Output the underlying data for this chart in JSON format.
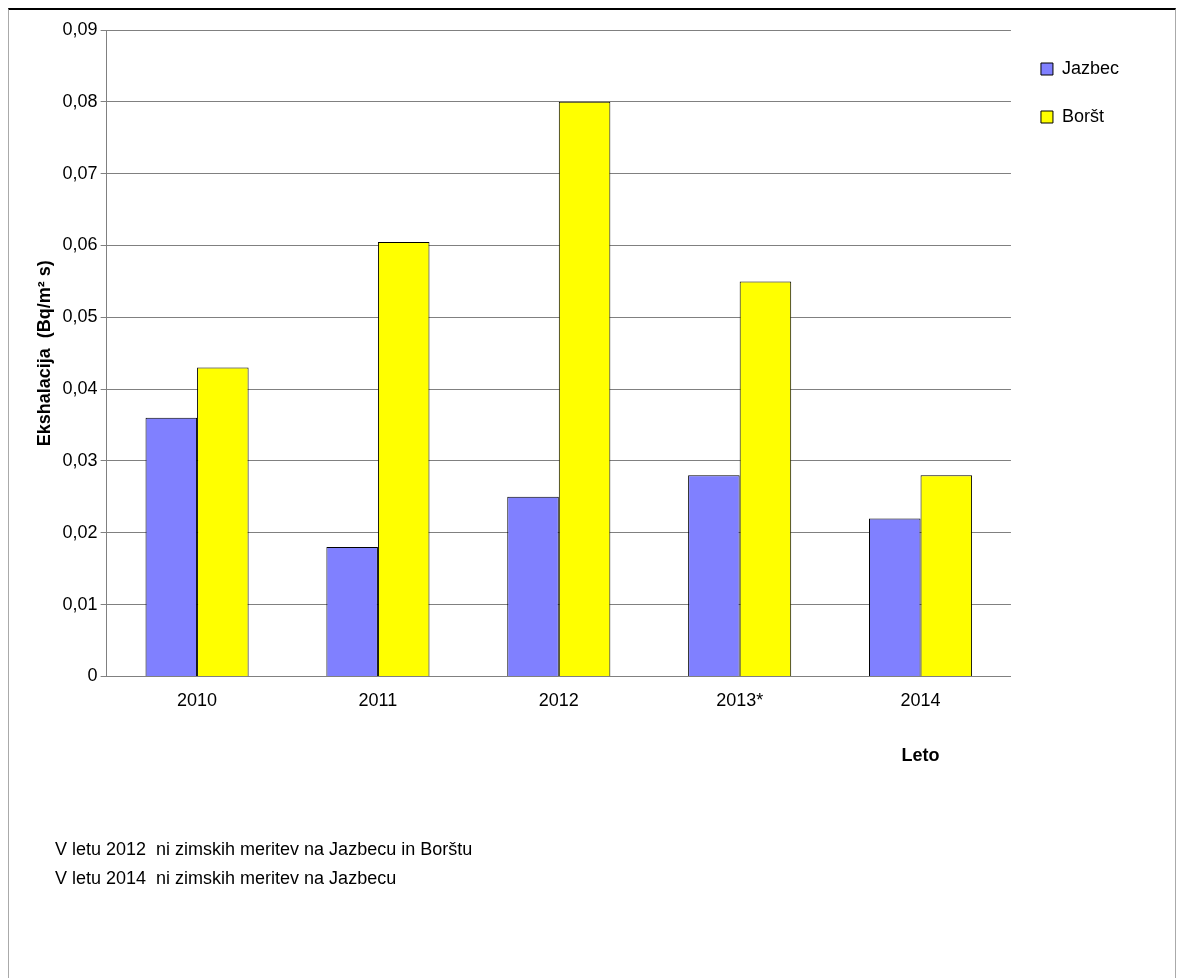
{
  "chart_data": {
    "type": "bar",
    "xlabel": "Leto",
    "ylabel": "Ekshalacija  (Bq/m² s)",
    "categories": [
      "2010",
      "2011",
      "2012",
      "2013*",
      "2014"
    ],
    "series": [
      {
        "name": "Jazbec",
        "color": "#8080ff",
        "values": [
          0.036,
          0.018,
          0.025,
          0.028,
          0.022
        ]
      },
      {
        "name": "Boršt",
        "color": "#ffff00",
        "values": [
          0.043,
          0.0605,
          0.08,
          0.055,
          0.028
        ]
      }
    ],
    "ylim": [
      0,
      0.09
    ],
    "yticks": [
      {
        "value": 0,
        "label": "0"
      },
      {
        "value": 0.01,
        "label": "0,01"
      },
      {
        "value": 0.02,
        "label": "0,02"
      },
      {
        "value": 0.03,
        "label": "0,03"
      },
      {
        "value": 0.04,
        "label": "0,04"
      },
      {
        "value": 0.05,
        "label": "0,05"
      },
      {
        "value": 0.06,
        "label": "0,06"
      },
      {
        "value": 0.07,
        "label": "0,07"
      },
      {
        "value": 0.08,
        "label": "0,08"
      },
      {
        "value": 0.09,
        "label": "0,09"
      }
    ],
    "grid": "y",
    "legend": "right",
    "annotations": [
      "V letu 2012  ni zimskih meritev na Jazbecu in Borštu",
      "V letu 2014  ni zimskih meritev na Jazbecu"
    ]
  }
}
